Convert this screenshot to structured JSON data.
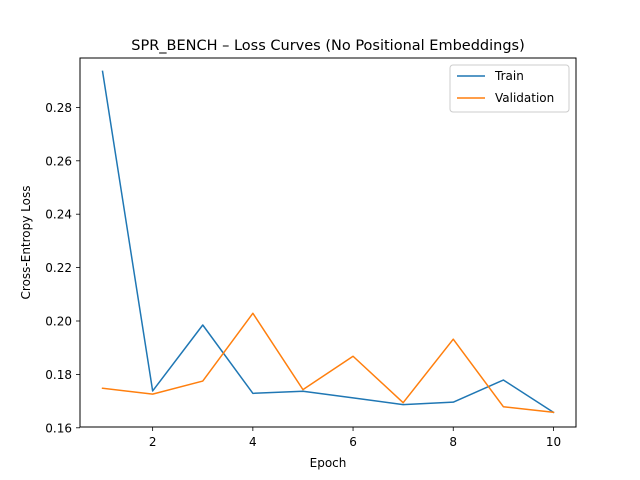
{
  "chart_data": {
    "type": "line",
    "title": "SPR_BENCH – Loss Curves (No Positional Embeddings)",
    "xlabel": "Epoch",
    "ylabel": "Cross-Entropy Loss",
    "x": [
      1,
      2,
      3,
      4,
      5,
      6,
      7,
      8,
      9,
      10
    ],
    "xlim": [
      0.55,
      10.45
    ],
    "ylim": [
      0.1603,
      0.2985
    ],
    "xticks": [
      2,
      4,
      6,
      8,
      10
    ],
    "yticks": [
      0.16,
      0.18,
      0.2,
      0.22,
      0.24,
      0.26,
      0.28
    ],
    "ytick_labels": [
      "0.16",
      "0.18",
      "0.20",
      "0.22",
      "0.24",
      "0.26",
      "0.28"
    ],
    "grid": false,
    "legend_position": "top-right",
    "series": [
      {
        "name": "Train",
        "color": "#1f77b4",
        "values": [
          0.2935,
          0.1738,
          0.1985,
          0.1729,
          0.1737,
          0.1712,
          0.1687,
          0.1696,
          0.1779,
          0.1658
        ]
      },
      {
        "name": "Validation",
        "color": "#ff7f0e",
        "values": [
          0.1748,
          0.1726,
          0.1775,
          0.2029,
          0.1743,
          0.1868,
          0.1694,
          0.1932,
          0.1679,
          0.1658
        ]
      }
    ]
  }
}
